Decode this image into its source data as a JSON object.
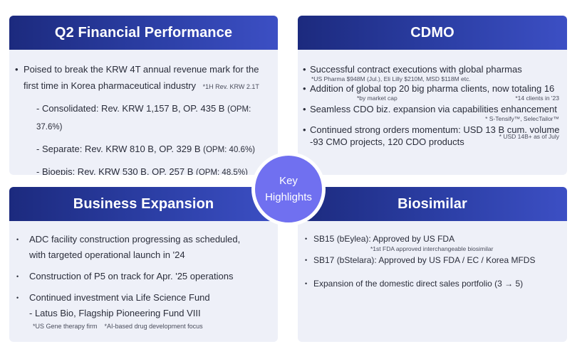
{
  "financial": {
    "title": "Q2 Financial Performance",
    "main_line1": "Poised to break the KRW 4T annual revenue mark for the",
    "main_line2": "first time in Korea pharmaceutical industry",
    "main_footnote": "*1H Rev. KRW 2.1T",
    "items": [
      {
        "text": "- Consolidated: Rev. KRW 1,157 B, OP. 435 B",
        "opm": "(OPM: 37.6%)"
      },
      {
        "text": "- Separate: Rev. KRW 810 B, OP. 329 B",
        "opm": "(OPM: 40.6%)"
      },
      {
        "text": "- Bioepis: Rev. KRW 530 B, OP. 257 B",
        "opm": "(OPM: 48.5%)"
      }
    ]
  },
  "cdmo": {
    "title": "CDMO",
    "items": [
      {
        "text": "Successful contract executions with global pharmas",
        "footnote": "*US Pharma $948M (Jul.), Eli Lilly $210M, MSD $118M etc."
      },
      {
        "text": "Addition of global top 20 big pharma clients, now totaling 16",
        "footnote": "*by market cap",
        "footnote2": "*14 clients in '23"
      },
      {
        "text": "Seamless CDO biz. expansion via capabilities enhancement",
        "footnote": "* S-Tensify™, SelecTailor™"
      },
      {
        "text": "Continued strong orders momentum: USD 13 B cum. volume",
        "line2": "-93 CMO projects, 120 CDO products",
        "footnote": "* USD 14B+ as of July"
      }
    ]
  },
  "business": {
    "title": "Business Expansion",
    "item1_line1": "ADC facility construction progressing as scheduled,",
    "item1_line2": "with targeted operational launch in '24",
    "item2": "Construction of P5 on track for Apr. '25 operations",
    "item3_line1": "Continued investment via Life Science Fund",
    "item3_line2": "- Latus Bio, Flagship Pioneering Fund VIII",
    "footnote": "*US Gene therapy firm    *AI-based drug development focus"
  },
  "biosimilar": {
    "title": "Biosimilar",
    "item1": "SB15 (bEylea): Approved by US FDA",
    "item1_footnote": "*1st FDA approved interchangeable biosimilar",
    "item2": "SB17 (bStelara): Approved by US FDA / EC / Korea MFDS",
    "item3": "Expansion of the domestic direct sales portfolio (3 → 5)"
  },
  "center": {
    "line1": "Key",
    "line2": "Highlights"
  },
  "colors": {
    "header_dark": "#1c2a7e",
    "header_light": "#3c4fc4",
    "panel_bg": "#eef0f8",
    "center_circle": "#7070f0"
  }
}
